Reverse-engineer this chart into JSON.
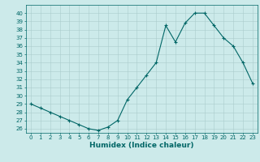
{
  "x": [
    0,
    1,
    2,
    3,
    4,
    5,
    6,
    7,
    8,
    9,
    10,
    11,
    12,
    13,
    14,
    15,
    16,
    17,
    18,
    19,
    20,
    21,
    22,
    23
  ],
  "y": [
    29.0,
    28.5,
    28.0,
    27.5,
    27.0,
    26.5,
    26.0,
    25.8,
    26.2,
    27.0,
    29.5,
    31.0,
    32.5,
    34.0,
    38.5,
    36.5,
    38.8,
    40.0,
    40.0,
    38.5,
    37.0,
    36.0,
    34.0,
    31.5
  ],
  "line_color": "#006666",
  "marker": "+",
  "marker_size": 3,
  "marker_linewidth": 0.8,
  "line_width": 0.8,
  "bg_color": "#cceaea",
  "grid_color": "#aacccc",
  "xlabel": "Humidex (Indice chaleur)",
  "ylim": [
    25.5,
    41.0
  ],
  "xlim": [
    -0.5,
    23.5
  ],
  "yticks": [
    26,
    27,
    28,
    29,
    30,
    31,
    32,
    33,
    34,
    35,
    36,
    37,
    38,
    39,
    40
  ],
  "xticks": [
    0,
    1,
    2,
    3,
    4,
    5,
    6,
    7,
    8,
    9,
    10,
    11,
    12,
    13,
    14,
    15,
    16,
    17,
    18,
    19,
    20,
    21,
    22,
    23
  ],
  "tick_fontsize": 5,
  "xlabel_fontsize": 6.5,
  "axis_color": "#006666",
  "spine_linewidth": 0.5
}
